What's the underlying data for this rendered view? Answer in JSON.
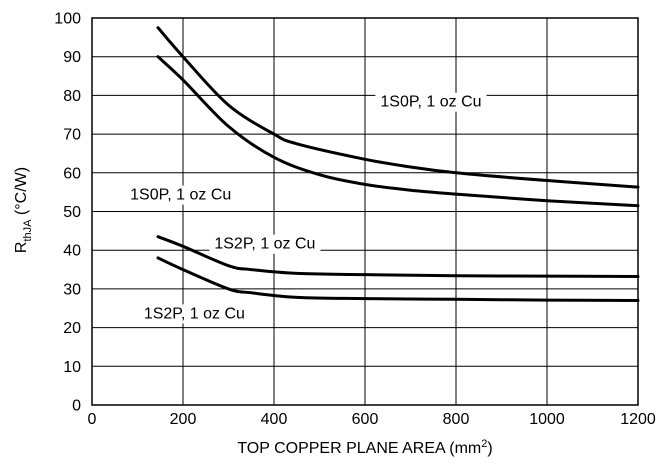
{
  "chart_data": {
    "type": "line",
    "xlabel": "TOP COPPER PLANE AREA (mm",
    "xlabel_sup": "2",
    "xlabel_end": ")",
    "ylabel_main": "R",
    "ylabel_sub": "thJA",
    "ylabel_unit": " (°C/W)",
    "xlim": [
      0,
      1200
    ],
    "ylim": [
      0,
      100
    ],
    "x_ticks": [
      0,
      200,
      400,
      600,
      800,
      1000,
      1200
    ],
    "y_ticks": [
      0,
      10,
      20,
      30,
      40,
      50,
      60,
      70,
      80,
      90,
      100
    ],
    "grid": true,
    "series": [
      {
        "values": [
          [
            145,
            97.5
          ],
          [
            200,
            90
          ],
          [
            300,
            77.5
          ],
          [
            400,
            70
          ],
          [
            450,
            67.5
          ],
          [
            600,
            63.5
          ],
          [
            700,
            61.5
          ],
          [
            800,
            60
          ],
          [
            1000,
            58
          ],
          [
            1200,
            56.3
          ]
        ]
      },
      {
        "values": [
          [
            145,
            90
          ],
          [
            200,
            84
          ],
          [
            300,
            72
          ],
          [
            400,
            64
          ],
          [
            500,
            59.5
          ],
          [
            600,
            57
          ],
          [
            700,
            55.5
          ],
          [
            800,
            54.5
          ],
          [
            1000,
            52.8
          ],
          [
            1200,
            51.5
          ]
        ]
      },
      {
        "values": [
          [
            145,
            43.5
          ],
          [
            200,
            41
          ],
          [
            300,
            36
          ],
          [
            350,
            35
          ],
          [
            450,
            34
          ],
          [
            600,
            33.7
          ],
          [
            800,
            33.4
          ],
          [
            1000,
            33.3
          ],
          [
            1200,
            33.2
          ]
        ]
      },
      {
        "values": [
          [
            145,
            38
          ],
          [
            200,
            35
          ],
          [
            300,
            30
          ],
          [
            350,
            29
          ],
          [
            450,
            27.8
          ],
          [
            600,
            27.5
          ],
          [
            800,
            27.3
          ],
          [
            1000,
            27.1
          ],
          [
            1200,
            27
          ]
        ]
      }
    ],
    "annotations": [
      {
        "text": "1S0P, 1 oz Cu",
        "x": 745,
        "y": 78.5
      },
      {
        "text": "1S0P, 1 oz Cu",
        "x": 195,
        "y": 54.5
      },
      {
        "text": "1S2P, 1 oz Cu",
        "x": 380,
        "y": 41.8
      },
      {
        "text": "1S2P, 1 oz Cu",
        "x": 225,
        "y": 23.8
      }
    ]
  }
}
